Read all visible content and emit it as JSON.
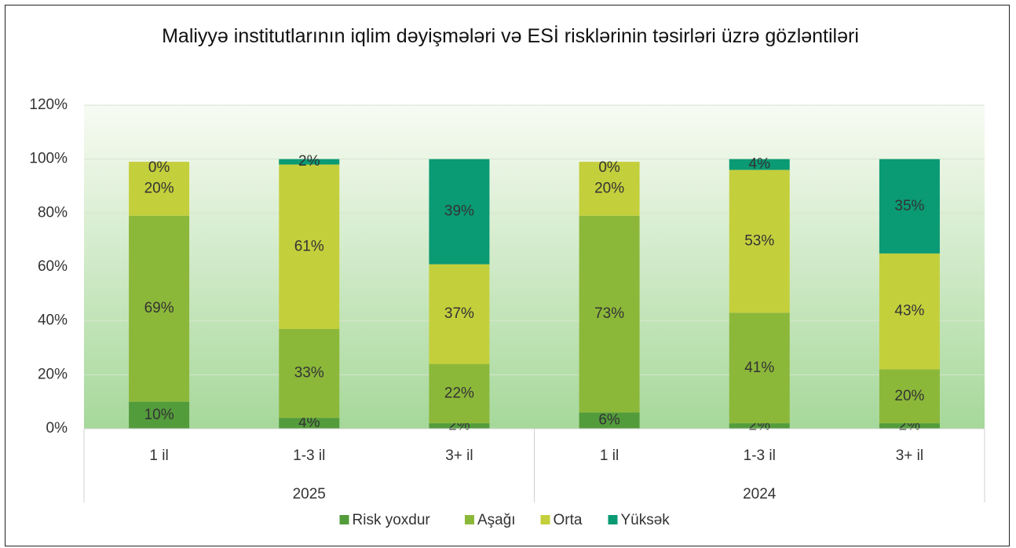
{
  "chart_data": {
    "type": "stacked_bar",
    "title": "Maliyyə institutlarının iqlim dəyişmələri və ESİ risklərinin təsirləri üzrə gözləntiləri",
    "groups": [
      {
        "name": "2025",
        "categories": [
          "1 il",
          "1-3 il",
          "3+ il"
        ]
      },
      {
        "name": "2024",
        "categories": [
          "1 il",
          "1-3 il",
          "3+ il"
        ]
      }
    ],
    "series": [
      {
        "name": "Risk yoxdur",
        "color": "#539c3c",
        "values": [
          10,
          4,
          2,
          6,
          2,
          2
        ],
        "value_labels": [
          "10%",
          "4%",
          "2%",
          "6%",
          "2%",
          "2%"
        ]
      },
      {
        "name": "Aşağı",
        "color": "#8cb83a",
        "values": [
          69,
          33,
          22,
          73,
          41,
          20
        ],
        "value_labels": [
          "69%",
          "33%",
          "22%",
          "73%",
          "41%",
          "20%"
        ]
      },
      {
        "name": "Orta",
        "color": "#c4cf3c",
        "values": [
          20,
          61,
          37,
          20,
          53,
          43
        ],
        "value_labels": [
          "20%",
          "61%",
          "37%",
          "20%",
          "53%",
          "43%"
        ]
      },
      {
        "name": "Yüksək",
        "color": "#0a9a74",
        "values": [
          0,
          2,
          39,
          0,
          4,
          35
        ],
        "value_labels": [
          "0%",
          "2%",
          "39%",
          "0%",
          "4%",
          "35%"
        ]
      }
    ],
    "ylim": [
      0,
      120
    ],
    "yticks": [
      {
        "value": 0,
        "label": "0%"
      },
      {
        "value": 20,
        "label": "20%"
      },
      {
        "value": 40,
        "label": "40%"
      },
      {
        "value": 60,
        "label": "60%"
      },
      {
        "value": 80,
        "label": "80%"
      },
      {
        "value": 100,
        "label": "100%"
      },
      {
        "value": 120,
        "label": "120%"
      }
    ],
    "grid": true,
    "legend": "bottom"
  }
}
